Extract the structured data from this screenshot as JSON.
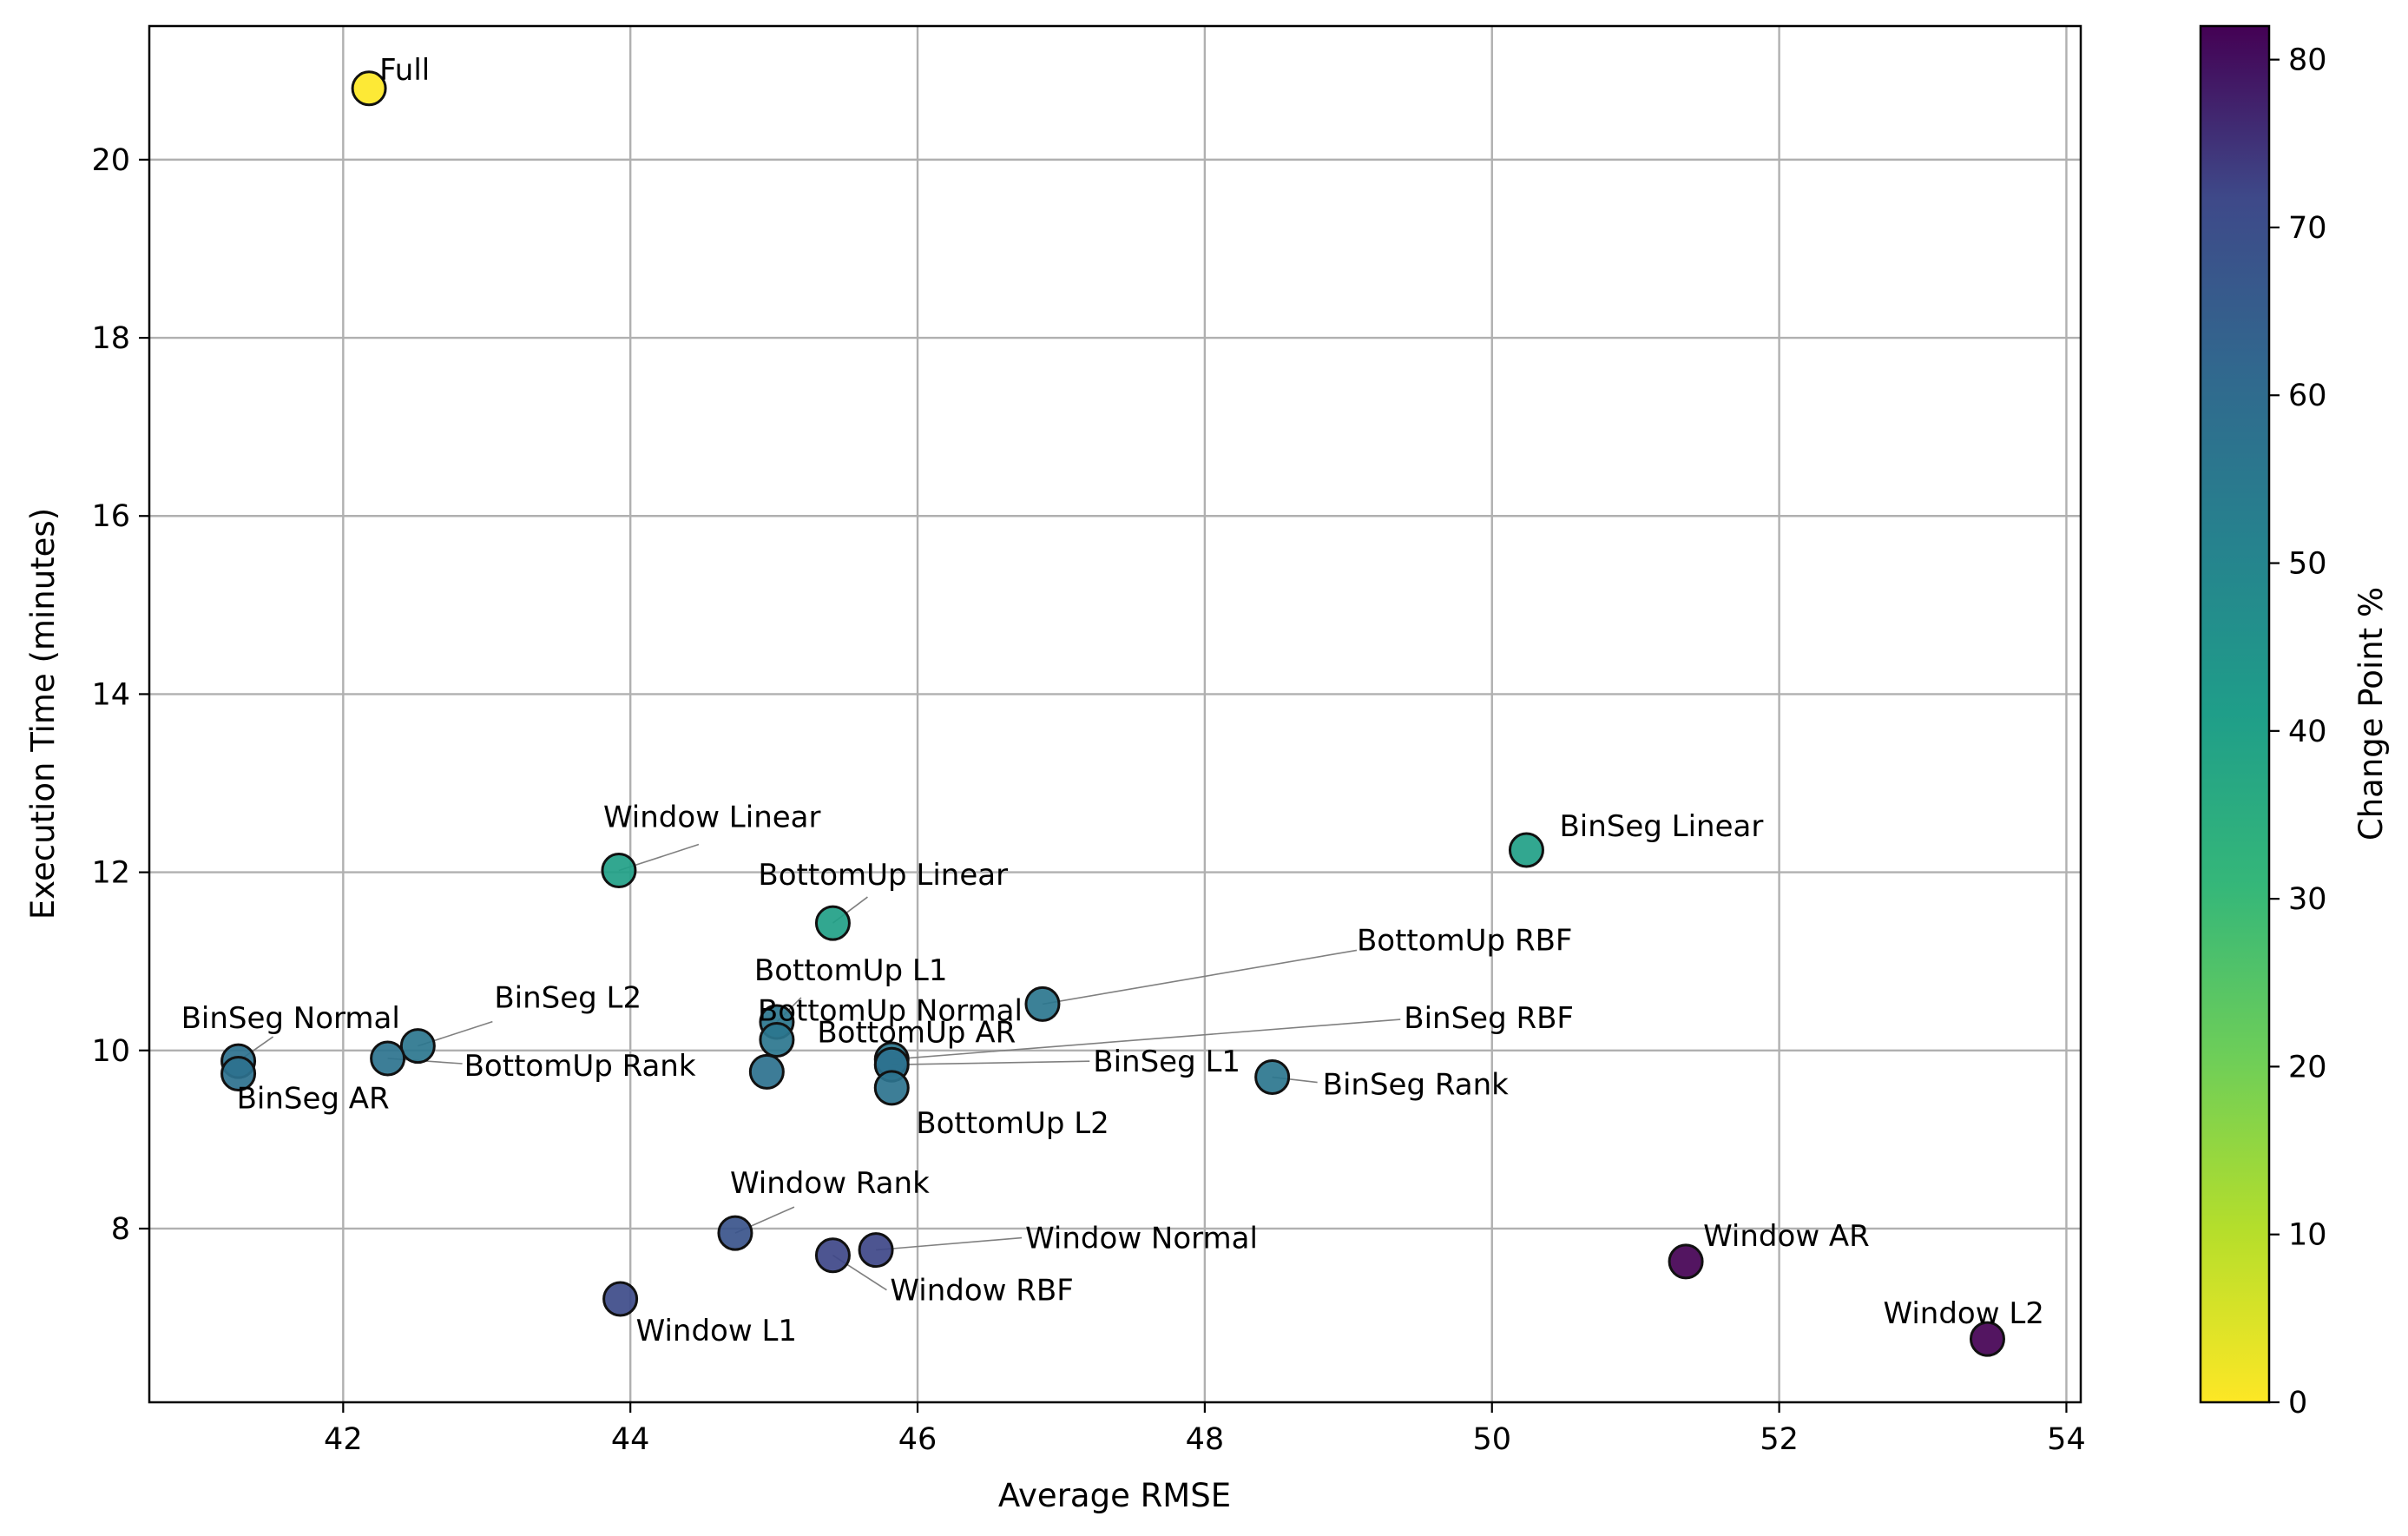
{
  "chart_data": {
    "type": "scatter",
    "xlabel": "Average RMSE",
    "ylabel": "Execution Time (minutes)",
    "xlim": [
      40.65,
      54.1
    ],
    "ylim": [
      6.05,
      21.5
    ],
    "xticks": [
      42,
      44,
      46,
      48,
      50,
      52,
      54
    ],
    "yticks": [
      8,
      10,
      12,
      14,
      16,
      18,
      20
    ],
    "grid": true,
    "colorbar": {
      "label": "Change Point %",
      "colormap": "viridis",
      "range": [
        0,
        82
      ],
      "ticks": [
        0,
        10,
        20,
        30,
        40,
        50,
        60,
        70,
        80
      ]
    },
    "points": [
      {
        "label": "Full",
        "x": 42.18,
        "y": 20.8,
        "c": 0
      },
      {
        "label": "Window Linear",
        "x": 43.92,
        "y": 12.02,
        "c": 40
      },
      {
        "label": "BottomUp Linear",
        "x": 45.41,
        "y": 11.43,
        "c": 40
      },
      {
        "label": "BinSeg Linear",
        "x": 50.24,
        "y": 12.25,
        "c": 40
      },
      {
        "label": "BottomUp RBF",
        "x": 46.87,
        "y": 10.52,
        "c": 56
      },
      {
        "label": "BottomUp L1",
        "x": 45.02,
        "y": 10.32,
        "c": 56
      },
      {
        "label": "BottomUp Normal",
        "x": 45.02,
        "y": 10.12,
        "c": 56
      },
      {
        "label": "BottomUp AR",
        "x": 44.95,
        "y": 9.76,
        "c": 58
      },
      {
        "label": "BinSeg Normal",
        "x": 41.27,
        "y": 9.88,
        "c": 58
      },
      {
        "label": "BinSeg AR",
        "x": 41.27,
        "y": 9.74,
        "c": 58
      },
      {
        "label": "BinSeg L2",
        "x": 42.52,
        "y": 10.05,
        "c": 56
      },
      {
        "label": "BottomUp Rank",
        "x": 42.31,
        "y": 9.91,
        "c": 57
      },
      {
        "label": "BinSeg RBF",
        "x": 45.82,
        "y": 9.9,
        "c": 56
      },
      {
        "label": "BinSeg L1",
        "x": 45.82,
        "y": 9.84,
        "c": 58
      },
      {
        "label": "BottomUp L2",
        "x": 45.82,
        "y": 9.58,
        "c": 57
      },
      {
        "label": "BinSeg Rank",
        "x": 48.47,
        "y": 9.7,
        "c": 56
      },
      {
        "label": "Window Rank",
        "x": 44.73,
        "y": 7.95,
        "c": 68
      },
      {
        "label": "Window Normal",
        "x": 45.71,
        "y": 7.76,
        "c": 72
      },
      {
        "label": "Window RBF",
        "x": 45.41,
        "y": 7.7,
        "c": 72
      },
      {
        "label": "Window L1",
        "x": 43.93,
        "y": 7.21,
        "c": 71
      },
      {
        "label": "Window AR",
        "x": 51.35,
        "y": 7.63,
        "c": 82
      },
      {
        "label": "Window L2",
        "x": 53.45,
        "y": 6.76,
        "c": 82
      }
    ]
  }
}
